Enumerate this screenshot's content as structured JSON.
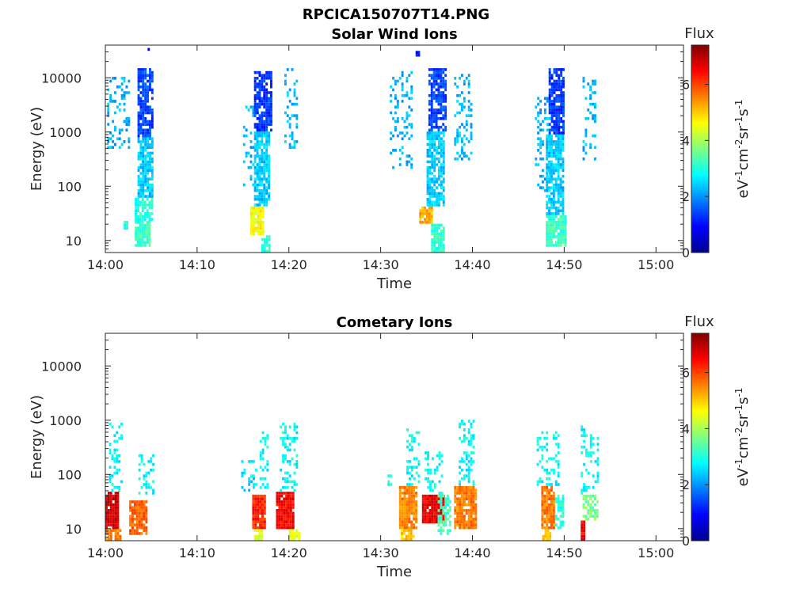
{
  "figure": {
    "filename_title": "RPCICA150707T14.PNG"
  },
  "colormap": "jet",
  "chart_data": [
    {
      "type": "heatmap",
      "title": "Solar Wind Ions",
      "xlabel": "Time",
      "ylabel": "Energy (eV)",
      "x_ticks": [
        "14:00",
        "14:10",
        "14:20",
        "14:30",
        "14:40",
        "14:50",
        "15:00"
      ],
      "x_range_minutes": [
        0,
        63
      ],
      "y_scale": "log",
      "y_ticks": [
        "10",
        "100",
        "1000",
        "10000"
      ],
      "ylim": [
        6,
        40000
      ],
      "colorbar": {
        "label": "Flux",
        "units": "eV-1cm-2sr-1s-1",
        "range": [
          0,
          7.4
        ],
        "ticks": [
          "0",
          "2",
          "4",
          "6"
        ]
      },
      "bursts": [
        {
          "t": [
            0.2,
            2.6
          ],
          "e": [
            500,
            10000
          ],
          "flux": 2.2,
          "density": 0.25
        },
        {
          "t": [
            2.0,
            2.3
          ],
          "e": [
            16,
            22
          ],
          "flux": 3.0,
          "density": 1.0
        },
        {
          "t": [
            3.2,
            4.9
          ],
          "e": [
            8,
            20
          ],
          "flux": 3.2,
          "density": 0.9
        },
        {
          "t": [
            3.2,
            5.0
          ],
          "e": [
            20,
            60
          ],
          "flux": 3.0,
          "density": 0.8
        },
        {
          "t": [
            3.5,
            5.2
          ],
          "e": [
            60,
            800
          ],
          "flux": 2.4,
          "density": 0.8
        },
        {
          "t": [
            3.5,
            5.2
          ],
          "e": [
            800,
            15000
          ],
          "flux": 1.4,
          "density": 0.8
        },
        {
          "t": [
            4.6,
            4.8
          ],
          "e": [
            30000,
            36000
          ],
          "flux": 0.9,
          "density": 1.0
        },
        {
          "t": [
            15.0,
            16.6
          ],
          "e": [
            100,
            3000
          ],
          "flux": 2.2,
          "density": 0.25
        },
        {
          "t": [
            15.8,
            17.2
          ],
          "e": [
            12,
            40
          ],
          "flux": 4.6,
          "density": 0.95
        },
        {
          "t": [
            16.2,
            17.8
          ],
          "e": [
            40,
            1000
          ],
          "flux": 2.4,
          "density": 0.8
        },
        {
          "t": [
            16.2,
            18.0
          ],
          "e": [
            1000,
            13000
          ],
          "flux": 1.3,
          "density": 0.8
        },
        {
          "t": [
            17.0,
            17.9
          ],
          "e": [
            6,
            12
          ],
          "flux": 3.0,
          "density": 0.9
        },
        {
          "t": [
            19.5,
            21.0
          ],
          "e": [
            500,
            15000
          ],
          "flux": 2.3,
          "density": 0.3
        },
        {
          "t": [
            31.0,
            33.5
          ],
          "e": [
            200,
            13000
          ],
          "flux": 2.2,
          "density": 0.25
        },
        {
          "t": [
            34.2,
            35.5
          ],
          "e": [
            20,
            40
          ],
          "flux": 5.2,
          "density": 0.95
        },
        {
          "t": [
            35.0,
            36.8
          ],
          "e": [
            40,
            1000
          ],
          "flux": 2.4,
          "density": 0.8
        },
        {
          "t": [
            35.2,
            37.0
          ],
          "e": [
            1000,
            15000
          ],
          "flux": 1.4,
          "density": 0.8
        },
        {
          "t": [
            35.5,
            37.0
          ],
          "e": [
            6,
            20
          ],
          "flux": 3.1,
          "density": 0.9
        },
        {
          "t": [
            33.8,
            34.3
          ],
          "e": [
            25000,
            30000
          ],
          "flux": 1.0,
          "density": 1.0
        },
        {
          "t": [
            38.0,
            40.0
          ],
          "e": [
            300,
            12000
          ],
          "flux": 2.3,
          "density": 0.3
        },
        {
          "t": [
            46.8,
            48.5
          ],
          "e": [
            80,
            5000
          ],
          "flux": 2.2,
          "density": 0.25
        },
        {
          "t": [
            48.0,
            50.2
          ],
          "e": [
            8,
            30
          ],
          "flux": 3.2,
          "density": 0.9
        },
        {
          "t": [
            48.0,
            50.0
          ],
          "e": [
            30,
            900
          ],
          "flux": 2.4,
          "density": 0.8
        },
        {
          "t": [
            48.3,
            50.0
          ],
          "e": [
            900,
            15000
          ],
          "flux": 1.3,
          "density": 0.8
        },
        {
          "t": [
            52.0,
            53.5
          ],
          "e": [
            300,
            12000
          ],
          "flux": 2.3,
          "density": 0.3
        }
      ]
    },
    {
      "type": "heatmap",
      "title": "Cometary Ions",
      "xlabel": "Time",
      "ylabel": "Energy (eV)",
      "x_ticks": [
        "14:00",
        "14:10",
        "14:20",
        "14:30",
        "14:40",
        "14:50",
        "15:00"
      ],
      "x_range_minutes": [
        0,
        63
      ],
      "y_scale": "log",
      "y_ticks": [
        "10",
        "100",
        "1000",
        "10000"
      ],
      "ylim": [
        6,
        40000
      ],
      "colorbar": {
        "label": "Flux",
        "units": "eV-1cm-2sr-1s-1",
        "range": [
          0,
          7.4
        ],
        "ticks": [
          "0",
          "2",
          "4",
          "6"
        ]
      },
      "bursts": [
        {
          "t": [
            0.0,
            1.5
          ],
          "e": [
            10,
            50
          ],
          "flux": 6.8,
          "density": 0.95
        },
        {
          "t": [
            0.0,
            1.6
          ],
          "e": [
            6,
            10
          ],
          "flux": 5.5,
          "density": 0.9
        },
        {
          "t": [
            0.4,
            1.8
          ],
          "e": [
            50,
            900
          ],
          "flux": 2.8,
          "density": 0.3
        },
        {
          "t": [
            2.6,
            4.5
          ],
          "e": [
            8,
            35
          ],
          "flux": 5.8,
          "density": 0.9
        },
        {
          "t": [
            3.6,
            5.2
          ],
          "e": [
            40,
            250
          ],
          "flux": 2.8,
          "density": 0.35
        },
        {
          "t": [
            14.8,
            16.5
          ],
          "e": [
            50,
            200
          ],
          "flux": 2.6,
          "density": 0.2
        },
        {
          "t": [
            16.0,
            17.5
          ],
          "e": [
            10,
            40
          ],
          "flux": 6.2,
          "density": 0.95
        },
        {
          "t": [
            16.2,
            17.0
          ],
          "e": [
            6,
            10
          ],
          "flux": 4.4,
          "density": 0.9
        },
        {
          "t": [
            16.8,
            17.6
          ],
          "e": [
            40,
            600
          ],
          "flux": 2.8,
          "density": 0.3
        },
        {
          "t": [
            18.6,
            20.4
          ],
          "e": [
            10,
            50
          ],
          "flux": 6.5,
          "density": 0.95
        },
        {
          "t": [
            19.0,
            21.0
          ],
          "e": [
            50,
            900
          ],
          "flux": 2.8,
          "density": 0.35
        },
        {
          "t": [
            20.0,
            21.2
          ],
          "e": [
            6,
            10
          ],
          "flux": 4.4,
          "density": 0.9
        },
        {
          "t": [
            30.5,
            31.5
          ],
          "e": [
            60,
            100
          ],
          "flux": 3.0,
          "density": 0.2
        },
        {
          "t": [
            32.0,
            33.8
          ],
          "e": [
            10,
            60
          ],
          "flux": 5.5,
          "density": 0.9
        },
        {
          "t": [
            32.2,
            33.5
          ],
          "e": [
            6,
            10
          ],
          "flux": 5.0,
          "density": 0.9
        },
        {
          "t": [
            32.8,
            34.3
          ],
          "e": [
            60,
            700
          ],
          "flux": 2.8,
          "density": 0.3
        },
        {
          "t": [
            34.5,
            36.8
          ],
          "e": [
            12,
            45
          ],
          "flux": 6.6,
          "density": 0.95
        },
        {
          "t": [
            36.2,
            37.5
          ],
          "e": [
            8,
            40
          ],
          "flux": 3.2,
          "density": 0.6
        },
        {
          "t": [
            34.8,
            36.8
          ],
          "e": [
            45,
            300
          ],
          "flux": 2.8,
          "density": 0.3
        },
        {
          "t": [
            38.0,
            40.5
          ],
          "e": [
            10,
            60
          ],
          "flux": 5.6,
          "density": 0.9
        },
        {
          "t": [
            38.5,
            40.2
          ],
          "e": [
            60,
            1000
          ],
          "flux": 2.8,
          "density": 0.35
        },
        {
          "t": [
            47.5,
            48.8
          ],
          "e": [
            10,
            60
          ],
          "flux": 5.6,
          "density": 0.9
        },
        {
          "t": [
            47.6,
            48.6
          ],
          "e": [
            6,
            10
          ],
          "flux": 5.0,
          "density": 0.9
        },
        {
          "t": [
            47.0,
            49.5
          ],
          "e": [
            60,
            600
          ],
          "flux": 2.8,
          "density": 0.3
        },
        {
          "t": [
            49.0,
            50.0
          ],
          "e": [
            10,
            40
          ],
          "flux": 3.0,
          "density": 0.6
        },
        {
          "t": [
            51.8,
            52.3
          ],
          "e": [
            6,
            15
          ],
          "flux": 6.5,
          "density": 0.95
        },
        {
          "t": [
            52.0,
            53.6
          ],
          "e": [
            15,
            40
          ],
          "flux": 3.6,
          "density": 0.7
        },
        {
          "t": [
            51.8,
            53.6
          ],
          "e": [
            40,
            800
          ],
          "flux": 2.8,
          "density": 0.35
        }
      ]
    }
  ]
}
